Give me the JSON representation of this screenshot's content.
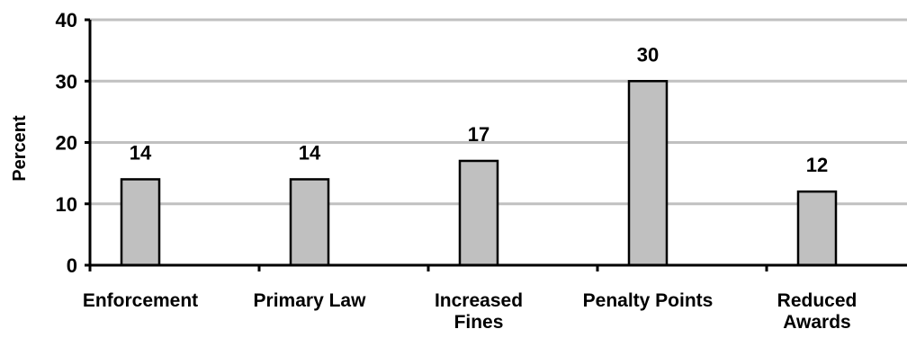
{
  "chart_data": {
    "type": "bar",
    "title": "",
    "xlabel": "",
    "ylabel": "Percent",
    "ylim": [
      0,
      40
    ],
    "yticks": [
      0,
      10,
      20,
      30,
      40
    ],
    "categories": [
      [
        "Enforcement"
      ],
      [
        "Primary Law"
      ],
      [
        "Increased",
        "Fines"
      ],
      [
        "Penalty Points"
      ],
      [
        "Reduced",
        "Awards"
      ]
    ],
    "values": [
      14,
      14,
      17,
      30,
      12
    ],
    "grid": true,
    "legend": "none",
    "colors": {
      "bar_fill": "#c0c0c0",
      "bar_stroke": "#000000",
      "gridline": "#c0c0c0",
      "axis": "#000000"
    }
  }
}
